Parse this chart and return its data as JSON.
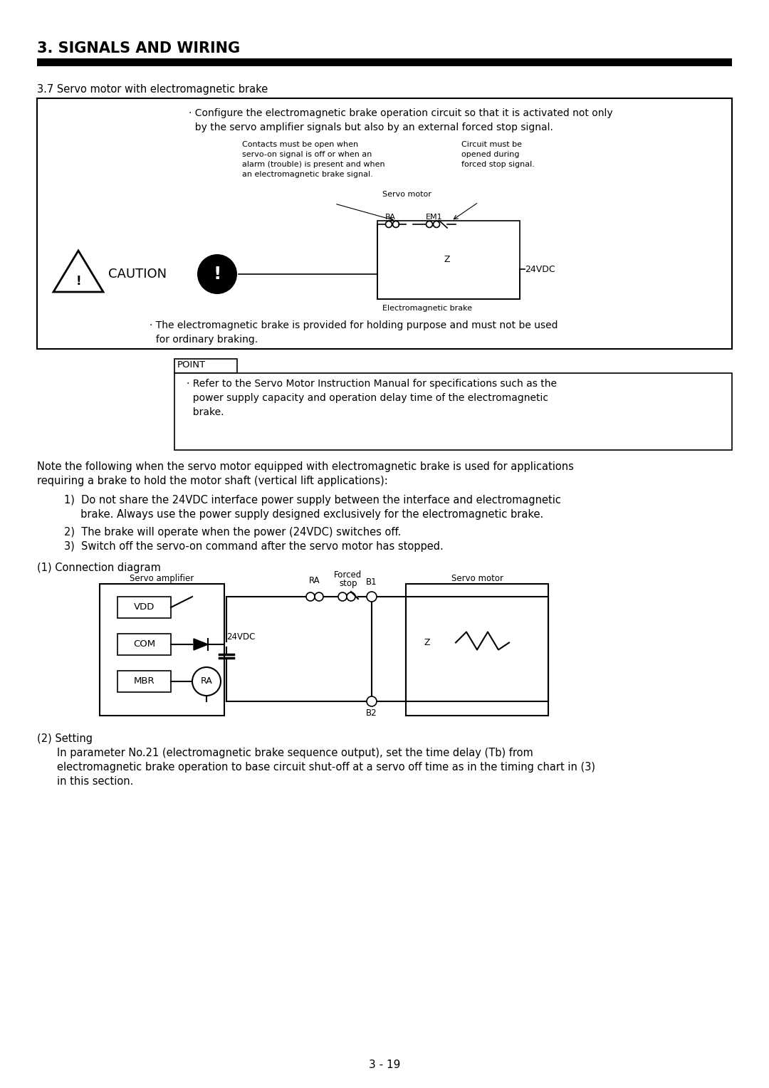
{
  "title": "3. SIGNALS AND WIRING",
  "section": "3.7 Servo motor with electromagnetic brake",
  "page_number": "3 - 19",
  "bg": "#ffffff"
}
